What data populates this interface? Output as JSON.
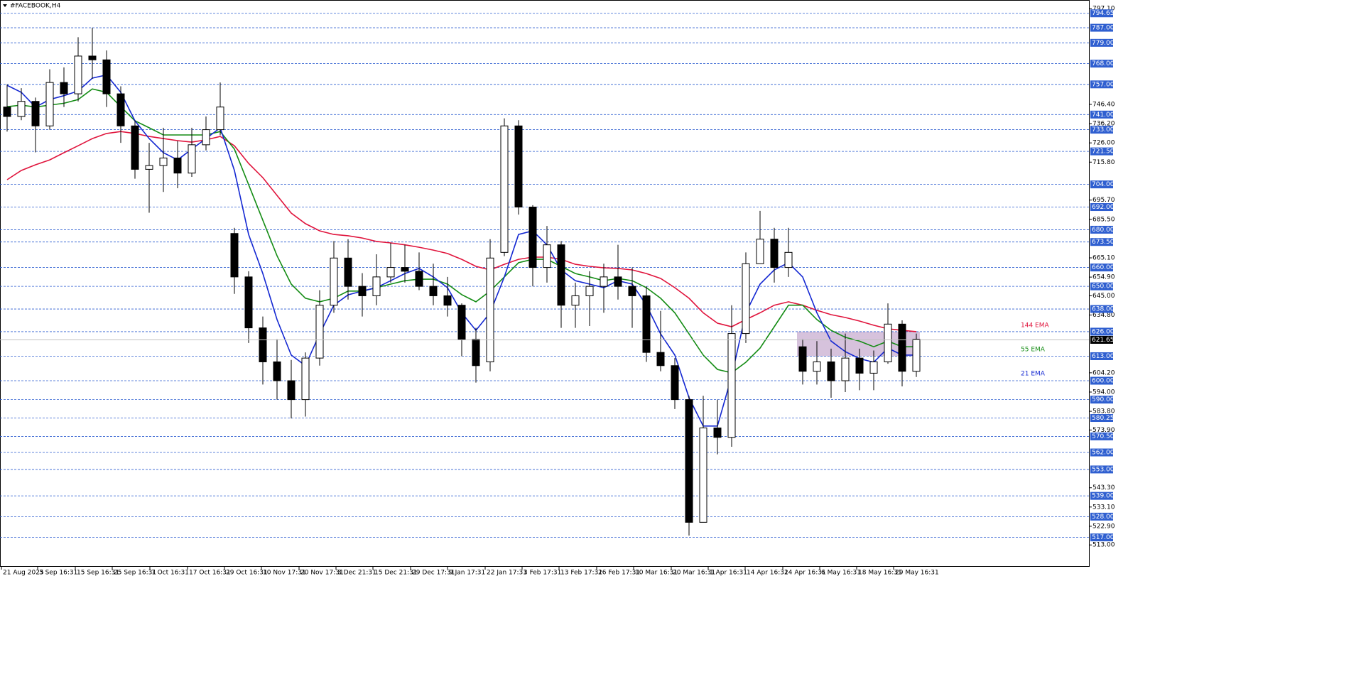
{
  "chart_data": {
    "type": "candlestick",
    "title": "#FACEBOOK,H4",
    "xlim": [
      0,
      76.65
    ],
    "ylim": [
      501.8,
      801.7
    ],
    "xticks": [
      {
        "value": 0.1,
        "label": "21 Aug 2025"
      },
      {
        "value": 2.65,
        "label": "3 Sep 16:31"
      },
      {
        "value": 5.3,
        "label": "15 Sep 16:31"
      },
      {
        "value": 7.9,
        "label": "25 Sep 16:31"
      },
      {
        "value": 10.55,
        "label": "7 Oct 16:31"
      },
      {
        "value": 13.2,
        "label": "17 Oct 16:31"
      },
      {
        "value": 15.8,
        "label": "29 Oct 16:31"
      },
      {
        "value": 18.4,
        "label": "10 Nov 17:31"
      },
      {
        "value": 21.05,
        "label": "20 Nov 17:31"
      },
      {
        "value": 23.65,
        "label": "3 Dec 21:31"
      },
      {
        "value": 26.25,
        "label": "15 Dec 21:31"
      },
      {
        "value": 28.9,
        "label": "29 Dec 17:31"
      },
      {
        "value": 31.5,
        "label": "9 Jan 17:31"
      },
      {
        "value": 34.15,
        "label": "22 Jan 17:31"
      },
      {
        "value": 36.75,
        "label": "3 Feb 17:31"
      },
      {
        "value": 39.35,
        "label": "13 Feb 17:31"
      },
      {
        "value": 42,
        "label": "26 Feb 17:31"
      },
      {
        "value": 44.6,
        "label": "10 Mar 16:31"
      },
      {
        "value": 47.25,
        "label": "20 Mar 16:31"
      },
      {
        "value": 49.85,
        "label": "1 Apr 16:31"
      },
      {
        "value": 52.45,
        "label": "14 Apr 16:31"
      },
      {
        "value": 55.1,
        "label": "24 Apr 16:31"
      },
      {
        "value": 57.7,
        "label": "6 May 16:31"
      },
      {
        "value": 60.3,
        "label": "18 May 16:31"
      },
      {
        "value": 62.9,
        "label": "29 May 16:31"
      }
    ],
    "yticks": [
      {
        "value": 797.1,
        "label": "797.10"
      },
      {
        "value": 746.4,
        "label": "746.40"
      },
      {
        "value": 736.2,
        "label": "736.20"
      },
      {
        "value": 726,
        "label": "726.00"
      },
      {
        "value": 715.8,
        "label": "715.80"
      },
      {
        "value": 695.7,
        "label": "695.70"
      },
      {
        "value": 685.5,
        "label": "685.50"
      },
      {
        "value": 665.1,
        "label": "665.10"
      },
      {
        "value": 654.9,
        "label": "654.90"
      },
      {
        "value": 645,
        "label": "645.00"
      },
      {
        "value": 634.8,
        "label": "634.80"
      },
      {
        "value": 604.2,
        "label": "604.20"
      },
      {
        "value": 594,
        "label": "594.00"
      },
      {
        "value": 583.8,
        "label": "583.80"
      },
      {
        "value": 573.9,
        "label": "573.90"
      },
      {
        "value": 543.3,
        "label": "543.30"
      },
      {
        "value": 533.1,
        "label": "533.10"
      },
      {
        "value": 522.9,
        "label": "522.90"
      },
      {
        "value": 513,
        "label": "513.00"
      }
    ],
    "levels": [
      {
        "value": 794.65,
        "label": "794.65"
      },
      {
        "value": 787,
        "label": "787.00"
      },
      {
        "value": 779,
        "label": "779.00"
      },
      {
        "value": 768,
        "label": "768.00"
      },
      {
        "value": 757,
        "label": "757.00"
      },
      {
        "value": 741,
        "label": "741.00"
      },
      {
        "value": 733,
        "label": "733.00"
      },
      {
        "value": 721.5,
        "label": "721.50"
      },
      {
        "value": 704,
        "label": "704.00"
      },
      {
        "value": 692,
        "label": "692.00"
      },
      {
        "value": 680,
        "label": "680.00"
      },
      {
        "value": 673.5,
        "label": "673.50"
      },
      {
        "value": 660,
        "label": "660.00"
      },
      {
        "value": 650,
        "label": "650.00"
      },
      {
        "value": 638,
        "label": "638.00"
      },
      {
        "value": 626,
        "label": "626.00"
      },
      {
        "value": 613,
        "label": "613.00"
      },
      {
        "value": 600,
        "label": "600.00"
      },
      {
        "value": 590,
        "label": "590.00"
      },
      {
        "value": 580.25,
        "label": "580.25"
      },
      {
        "value": 570.5,
        "label": "570.50"
      },
      {
        "value": 562,
        "label": "562.00"
      },
      {
        "value": 553,
        "label": "553.00"
      },
      {
        "value": 539,
        "label": "539.00"
      },
      {
        "value": 528,
        "label": "528.00"
      },
      {
        "value": 517,
        "label": "517.00"
      }
    ],
    "level_color": "#2f5fd0",
    "current_price": 621.65,
    "zone": {
      "xlim": [
        56.1,
        64.75
      ],
      "ylim": [
        613,
        626
      ],
      "color": "#c8aed0"
    },
    "candles": {
      "x": [
        0.5,
        1.5,
        2.5,
        3.5,
        4.5,
        5.5,
        6.5,
        7.5,
        8.5,
        9.5,
        10.5,
        11.5,
        12.5,
        13.5,
        14.5,
        15.5,
        16.5,
        17.5,
        18.5,
        19.5,
        20.5,
        21.5,
        22.5,
        23.5,
        24.5,
        25.5,
        26.5,
        27.5,
        28.5,
        29.5,
        30.5,
        31.5,
        32.5,
        33.5,
        34.5,
        35.5,
        36.5,
        37.5,
        38.5,
        39.5,
        40.5,
        41.5,
        42.5,
        43.5,
        44.5,
        45.5,
        46.5,
        47.5,
        48.5,
        49.5,
        50.5,
        51.5,
        52.5,
        53.5,
        54.5,
        55.5,
        56.5,
        57.5,
        58.5,
        59.5,
        60.5,
        61.5,
        62.5,
        63.5,
        64.5
      ],
      "open": [
        745,
        740,
        748,
        735,
        758,
        752,
        772,
        770,
        752,
        735,
        712,
        714,
        718,
        710,
        725,
        733,
        678,
        655,
        628,
        610,
        600,
        590,
        612,
        640,
        665,
        650,
        645,
        655,
        660,
        658,
        650,
        645,
        640,
        622,
        610,
        668,
        735,
        692,
        660,
        672,
        640,
        645,
        650,
        655,
        650,
        645,
        615,
        608,
        590,
        525,
        575,
        570,
        625,
        662,
        675,
        660,
        618,
        605,
        610,
        600,
        612,
        604,
        610,
        630,
        605
      ],
      "high": [
        757,
        755,
        750,
        765,
        766,
        782,
        787,
        775,
        756,
        738,
        726,
        734,
        727,
        734,
        740,
        758,
        681,
        658,
        634,
        622,
        611,
        615,
        648,
        674,
        675,
        657,
        667,
        673,
        672,
        668,
        662,
        655,
        641,
        628,
        675,
        739,
        738,
        693,
        682,
        674,
        652,
        658,
        662,
        672,
        660,
        650,
        637,
        612,
        592,
        592,
        590,
        640,
        668,
        690,
        681,
        681,
        622,
        621,
        617,
        625,
        617,
        616,
        641,
        632,
        625
      ],
      "low": [
        732,
        738,
        721,
        733,
        745,
        748,
        760,
        745,
        726,
        707,
        689,
        700,
        702,
        708,
        722,
        730,
        646,
        620,
        598,
        590,
        580,
        581,
        608,
        636,
        643,
        634,
        640,
        652,
        652,
        648,
        640,
        634,
        613,
        599,
        605,
        666,
        688,
        650,
        652,
        628,
        628,
        629,
        636,
        643,
        628,
        610,
        605,
        585,
        518,
        545,
        561,
        565,
        620,
        662,
        652,
        655,
        598,
        598,
        591,
        594,
        595,
        595,
        609,
        597,
        602
      ],
      "close": [
        740,
        748,
        735,
        758,
        752,
        772,
        770,
        752,
        735,
        712,
        714,
        718,
        710,
        725,
        733,
        745,
        655,
        628,
        610,
        600,
        590,
        612,
        640,
        665,
        650,
        645,
        655,
        660,
        658,
        650,
        645,
        640,
        622,
        608,
        665,
        735,
        692,
        660,
        672,
        640,
        645,
        650,
        655,
        650,
        645,
        615,
        608,
        590,
        525,
        575,
        570,
        625,
        662,
        675,
        660,
        668,
        605,
        610,
        600,
        612,
        604,
        610,
        630,
        605,
        622
      ]
    },
    "lines": [
      {
        "name": "144 EMA",
        "color": "#e0143c",
        "values": [
          706.5,
          711.4,
          714.4,
          717,
          720.8,
          724.5,
          728.3,
          731,
          732,
          731,
          729.4,
          728.3,
          727.2,
          726.4,
          727.6,
          729.4,
          724.5,
          715.1,
          707.6,
          698.2,
          688.8,
          683.2,
          679.4,
          677.5,
          676.8,
          675.6,
          673.8,
          673,
          672,
          670.7,
          669.2,
          667.4,
          664.3,
          660.6,
          658.7,
          661.7,
          664.3,
          665.5,
          665.5,
          664.3,
          661.7,
          660.6,
          659.8,
          659.5,
          658.7,
          656.8,
          654.2,
          649.3,
          643.7,
          636,
          630.5,
          628.6,
          632.4,
          636,
          640,
          641.8,
          640,
          637.3,
          635,
          633.5,
          631.6,
          629.4,
          627.5,
          626.7,
          626
        ]
      },
      {
        "name": "55 EMA",
        "color": "#148c14",
        "values": [
          745.2,
          746,
          745,
          746,
          747,
          749,
          754.6,
          752.8,
          745.2,
          737.7,
          734,
          730.2,
          730.2,
          730.2,
          730.2,
          732,
          722.7,
          703.9,
          685,
          666.2,
          651.2,
          643.7,
          641.8,
          643.7,
          647.5,
          647.5,
          649.3,
          651.2,
          653,
          653.8,
          653.8,
          651.2,
          645.6,
          641.8,
          647.5,
          655,
          662.5,
          664.3,
          664.3,
          660.6,
          656.8,
          655,
          653,
          654.2,
          653,
          649.3,
          643.7,
          636,
          624.8,
          613.6,
          606,
          604.2,
          609.8,
          617.3,
          628.6,
          640,
          640,
          632.4,
          626.7,
          623,
          621,
          618,
          621,
          618,
          618
        ]
      },
      {
        "name": "21 EMA",
        "color": "#1428d2",
        "values": [
          756.5,
          752.8,
          745,
          749,
          751,
          753.5,
          760.3,
          762,
          752.8,
          737.7,
          728.3,
          720.8,
          717,
          722.7,
          728.3,
          734,
          711.4,
          677.5,
          656.8,
          632.4,
          613.6,
          608,
          624.8,
          640,
          645.5,
          647.5,
          649.3,
          653,
          656.8,
          659.5,
          655,
          649.3,
          636,
          626.7,
          636,
          655,
          677.5,
          679.4,
          672,
          658.7,
          653,
          651.2,
          649.3,
          653,
          651.2,
          640,
          624.8,
          613.6,
          591,
          576,
          576,
          602.3,
          636,
          651.2,
          658.7,
          662.5,
          655,
          636,
          621,
          615.4,
          611.7,
          609.8,
          617.3,
          613.6,
          613.6
        ]
      }
    ]
  }
}
